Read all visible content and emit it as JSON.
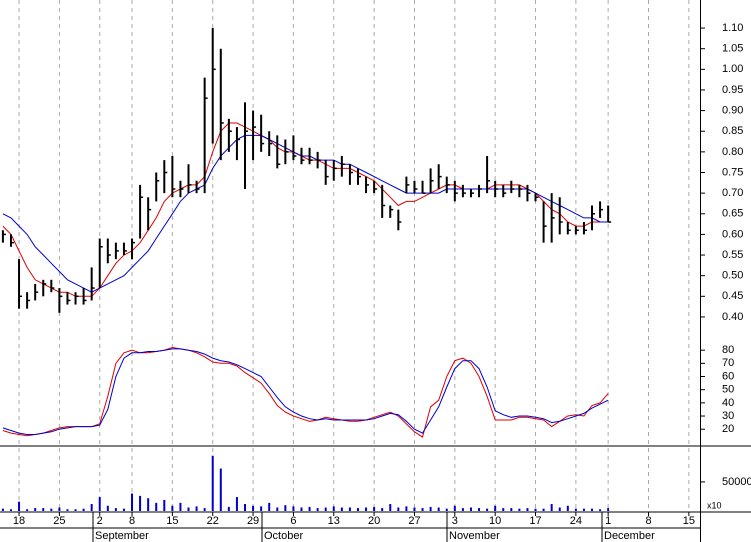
{
  "chart_data": [
    {
      "type": "hlc",
      "categories": [
        null,
        null,
        "18",
        null,
        null,
        null,
        null,
        "25",
        null,
        null,
        null,
        null,
        "2",
        null,
        null,
        null,
        "8",
        null,
        null,
        null,
        null,
        "15",
        null,
        null,
        null,
        null,
        "22",
        null,
        null,
        null,
        null,
        "29",
        null,
        null,
        null,
        null,
        "6",
        null,
        null,
        null,
        null,
        "13",
        null,
        null,
        null,
        null,
        "20",
        null,
        null,
        null,
        null,
        "27",
        null,
        null,
        null,
        null,
        "3",
        null,
        null,
        null,
        null,
        "10",
        null,
        null,
        null,
        null,
        "17",
        null,
        null,
        null,
        null,
        "24",
        null,
        null,
        null,
        "1",
        null,
        null,
        null,
        null,
        "8",
        null,
        null,
        null,
        null,
        "15"
      ],
      "months": [
        "September",
        "October",
        "November",
        "December"
      ],
      "high": [
        0.61,
        0.6,
        0.54,
        0.46,
        0.48,
        0.49,
        0.49,
        0.47,
        0.46,
        0.46,
        0.47,
        0.52,
        0.59,
        0.59,
        0.58,
        0.58,
        0.59,
        0.72,
        0.69,
        0.75,
        0.78,
        0.79,
        0.73,
        0.77,
        0.73,
        0.98,
        1.1,
        1.05,
        0.88,
        0.86,
        0.92,
        0.9,
        0.89,
        0.85,
        0.84,
        0.83,
        0.84,
        0.81,
        0.81,
        0.8,
        0.78,
        0.78,
        0.79,
        0.77,
        0.76,
        0.74,
        0.73,
        0.72,
        0.67,
        0.66,
        0.74,
        0.73,
        0.73,
        0.76,
        0.77,
        0.74,
        0.73,
        0.72,
        0.71,
        0.72,
        0.79,
        0.73,
        0.72,
        0.73,
        0.72,
        0.72,
        0.7,
        0.68,
        0.7,
        0.69,
        0.63,
        0.62,
        0.63,
        0.67,
        0.68,
        0.67,
        null,
        null,
        null,
        null,
        null,
        null,
        null,
        null,
        null,
        null
      ],
      "low": [
        0.58,
        0.57,
        0.42,
        0.42,
        0.44,
        0.45,
        0.46,
        0.41,
        0.43,
        0.43,
        0.43,
        0.44,
        0.47,
        0.53,
        0.54,
        0.55,
        0.54,
        0.59,
        0.61,
        0.68,
        0.7,
        0.69,
        0.69,
        0.7,
        0.7,
        0.7,
        0.82,
        0.78,
        0.8,
        0.78,
        0.71,
        0.78,
        0.8,
        0.79,
        0.76,
        0.77,
        0.78,
        0.77,
        0.77,
        0.76,
        0.72,
        0.73,
        0.74,
        0.72,
        0.72,
        0.7,
        0.7,
        0.64,
        0.64,
        0.61,
        0.7,
        0.7,
        0.7,
        0.7,
        0.71,
        0.7,
        0.68,
        0.69,
        0.69,
        0.69,
        0.7,
        0.69,
        0.69,
        0.7,
        0.69,
        0.68,
        0.68,
        0.58,
        0.58,
        0.6,
        0.6,
        0.6,
        0.6,
        0.61,
        0.64,
        0.63,
        null,
        null,
        null,
        null,
        null,
        null,
        null,
        null,
        null,
        null
      ],
      "close": [
        0.6,
        0.58,
        0.45,
        0.44,
        0.46,
        0.48,
        0.47,
        0.45,
        0.44,
        0.45,
        0.44,
        0.47,
        0.57,
        0.55,
        0.56,
        0.56,
        0.58,
        0.69,
        0.66,
        0.73,
        0.75,
        0.71,
        0.71,
        0.72,
        0.71,
        0.93,
        1.0,
        0.87,
        0.85,
        0.83,
        0.85,
        0.86,
        0.82,
        0.82,
        0.77,
        0.8,
        0.79,
        0.78,
        0.78,
        0.78,
        0.74,
        0.76,
        0.77,
        0.75,
        0.74,
        0.72,
        0.71,
        0.67,
        0.66,
        0.63,
        0.72,
        0.71,
        0.7,
        0.73,
        0.74,
        0.72,
        0.7,
        0.7,
        0.7,
        0.71,
        0.73,
        0.71,
        0.7,
        0.71,
        0.71,
        0.7,
        0.69,
        0.62,
        0.64,
        0.63,
        0.61,
        0.61,
        0.61,
        0.65,
        0.66,
        0.63,
        null,
        null,
        null,
        null,
        null,
        null,
        null,
        null,
        null,
        null
      ],
      "color": "#000000",
      "series": [
        {
          "color": "#e00000",
          "values": [
            0.62,
            0.6,
            0.56,
            0.52,
            0.49,
            0.48,
            0.47,
            0.46,
            0.46,
            0.45,
            0.45,
            0.45,
            0.47,
            0.5,
            0.53,
            0.55,
            0.56,
            0.58,
            0.61,
            0.64,
            0.68,
            0.7,
            0.71,
            0.72,
            0.72,
            0.74,
            0.8,
            0.85,
            0.87,
            0.87,
            0.86,
            0.85,
            0.84,
            0.83,
            0.81,
            0.8,
            0.8,
            0.79,
            0.78,
            0.78,
            0.77,
            0.76,
            0.76,
            0.76,
            0.75,
            0.74,
            0.73,
            0.71,
            0.69,
            0.67,
            0.68,
            0.68,
            0.69,
            0.7,
            0.71,
            0.72,
            0.72,
            0.71,
            0.71,
            0.71,
            0.71,
            0.72,
            0.72,
            0.72,
            0.72,
            0.71,
            0.7,
            0.68,
            0.66,
            0.65,
            0.63,
            0.62,
            0.62,
            0.63,
            0.63,
            0.63,
            null,
            null,
            null,
            null,
            null,
            null,
            null,
            null,
            null,
            null
          ]
        },
        {
          "color": "#0000d0",
          "values": [
            0.65,
            0.64,
            0.62,
            0.6,
            0.57,
            0.55,
            0.53,
            0.51,
            0.49,
            0.48,
            0.47,
            0.46,
            0.47,
            0.48,
            0.49,
            0.5,
            0.52,
            0.54,
            0.56,
            0.59,
            0.62,
            0.65,
            0.68,
            0.7,
            0.71,
            0.72,
            0.76,
            0.79,
            0.81,
            0.83,
            0.84,
            0.84,
            0.84,
            0.83,
            0.82,
            0.81,
            0.8,
            0.79,
            0.79,
            0.78,
            0.78,
            0.78,
            0.77,
            0.77,
            0.76,
            0.75,
            0.74,
            0.73,
            0.72,
            0.71,
            0.7,
            0.7,
            0.7,
            0.7,
            0.7,
            0.71,
            0.71,
            0.71,
            0.71,
            0.71,
            0.71,
            0.71,
            0.71,
            0.71,
            0.71,
            0.71,
            0.7,
            0.69,
            0.68,
            0.67,
            0.66,
            0.65,
            0.64,
            0.64,
            0.63,
            0.63,
            null,
            null,
            null,
            null,
            null,
            null,
            null,
            null,
            null,
            null
          ]
        }
      ],
      "ylim": [
        0.332,
        1.168
      ],
      "yticks": [
        {
          "value": 0.4,
          "label": "0.40"
        },
        {
          "value": 0.45,
          "label": "0.45"
        },
        {
          "value": 0.5,
          "label": "0.50"
        },
        {
          "value": 0.55,
          "label": "0.55"
        },
        {
          "value": 0.6,
          "label": "0.60"
        },
        {
          "value": 0.65,
          "label": "0.65"
        },
        {
          "value": 0.7,
          "label": "0.70"
        },
        {
          "value": 0.75,
          "label": "0.75"
        },
        {
          "value": 0.8,
          "label": "0.80"
        },
        {
          "value": 0.85,
          "label": "0.85"
        },
        {
          "value": 0.9,
          "label": "0.90"
        },
        {
          "value": 0.95,
          "label": "0.95"
        },
        {
          "value": 1.0,
          "label": "1.00"
        },
        {
          "value": 1.05,
          "label": "1.05"
        },
        {
          "value": 1.1,
          "label": "1.10"
        }
      ]
    },
    {
      "type": "line",
      "series": [
        {
          "color": "#e00000",
          "values": [
            19,
            17,
            16,
            15,
            16,
            17,
            19,
            21,
            22,
            22,
            22,
            22,
            24,
            45,
            70,
            78,
            80,
            78,
            78,
            79,
            80,
            82,
            81,
            80,
            78,
            75,
            71,
            70,
            70,
            68,
            63,
            59,
            55,
            47,
            38,
            33,
            30,
            28,
            26,
            27,
            29,
            28,
            27,
            26,
            26,
            27,
            29,
            31,
            33,
            30,
            24,
            18,
            14,
            37,
            42,
            60,
            72,
            74,
            70,
            60,
            45,
            27,
            27,
            27,
            29,
            29,
            28,
            27,
            22,
            26,
            30,
            31,
            30,
            38,
            40,
            47,
            null,
            null,
            null,
            null,
            null,
            null,
            null,
            null,
            null,
            null
          ]
        },
        {
          "color": "#0000d0",
          "values": [
            21,
            19,
            17,
            16,
            16,
            17,
            18,
            20,
            21,
            22,
            22,
            22,
            23,
            35,
            60,
            74,
            78,
            78,
            79,
            79,
            80,
            81,
            81,
            80,
            79,
            77,
            74,
            72,
            71,
            69,
            66,
            63,
            60,
            52,
            44,
            37,
            33,
            30,
            28,
            27,
            28,
            27,
            27,
            27,
            27,
            27,
            28,
            30,
            32,
            31,
            26,
            20,
            17,
            27,
            37,
            52,
            66,
            72,
            72,
            66,
            52,
            34,
            31,
            29,
            30,
            30,
            29,
            28,
            25,
            26,
            28,
            30,
            32,
            36,
            39,
            42,
            null,
            null,
            null,
            null,
            null,
            null,
            null,
            null,
            null,
            null
          ]
        }
      ],
      "ylim": [
        8,
        90
      ],
      "yticks": [
        20,
        30,
        40,
        50,
        60,
        70,
        80
      ]
    },
    {
      "type": "bar",
      "values": [
        4000,
        3000,
        16000,
        3000,
        5000,
        5000,
        4000,
        6000,
        3000,
        3000,
        4000,
        12000,
        24000,
        9000,
        5000,
        4000,
        30000,
        26000,
        22000,
        14000,
        19000,
        9000,
        14000,
        6000,
        8000,
        5000,
        95000,
        73000,
        7000,
        24000,
        12000,
        9000,
        8000,
        14000,
        6000,
        10000,
        8000,
        6000,
        7000,
        5000,
        6000,
        8000,
        6000,
        6000,
        5000,
        6000,
        7000,
        5000,
        12000,
        6000,
        8000,
        6000,
        5000,
        7000,
        6000,
        4000,
        9000,
        5000,
        6000,
        5000,
        4000,
        9000,
        5000,
        5000,
        4000,
        5000,
        4000,
        4000,
        12000,
        6000,
        9000,
        4000,
        4000,
        4000,
        3000,
        5000,
        null,
        null,
        null,
        null,
        null,
        null,
        null,
        null,
        null,
        null
      ],
      "color": "#0000cc",
      "ylim": [
        0,
        110000
      ],
      "yticks": [
        50000
      ],
      "multiplier_label": "x10"
    }
  ]
}
